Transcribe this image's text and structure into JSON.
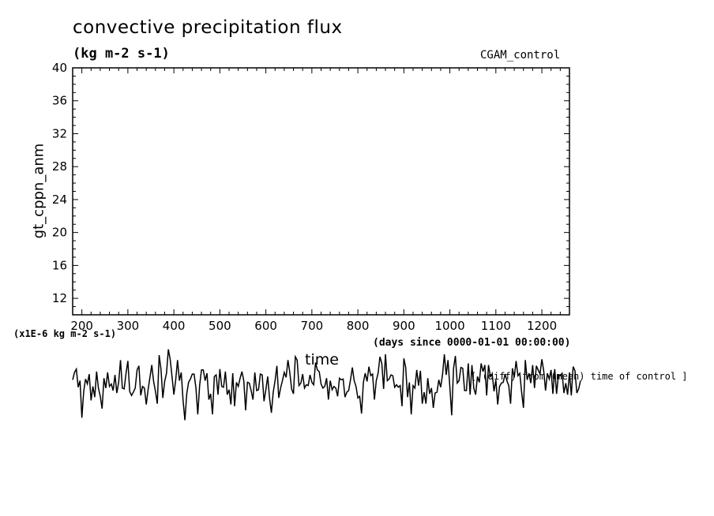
{
  "chart_data": {
    "type": "line",
    "title": "convective precipitation flux",
    "units": "(kg m-2 s-1)",
    "run_label": "CGAM_control",
    "ylabel": "gt_cppn_anm",
    "xlabel": "time",
    "x_units": "(days since 0000-01-01 00:00:00)",
    "y_scale_note": "(x1E-6 kg m-2 s-1)",
    "annotation": "[ (diff) from (mean) time of control ]",
    "xlim": [
      180,
      1260
    ],
    "ylim": [
      10,
      40
    ],
    "x_ticks": [
      200,
      300,
      400,
      500,
      600,
      700,
      800,
      900,
      1000,
      1100,
      1200
    ],
    "y_ticks": [
      12,
      16,
      20,
      24,
      28,
      32,
      36,
      40
    ],
    "series": [
      {
        "x_start": 180,
        "x_step": 4,
        "values": [
          2.1,
          3.0,
          3.4,
          1.2,
          2.0,
          -2.5,
          0.7,
          2.2,
          1.6,
          2.8,
          -0.4,
          1.3,
          0.0,
          3.1,
          1.1,
          0.1,
          -1.4,
          2.3,
          1.1,
          3.0,
          1.3,
          1.6,
          0.8,
          2.7,
          0.5,
          1.8,
          4.5,
          1.1,
          1.0,
          2.9,
          4.4,
          0.7,
          0.2,
          0.6,
          1.1,
          3.3,
          3.8,
          0.2,
          1.3,
          1.1,
          -0.9,
          0.9,
          2.4,
          3.9,
          1.9,
          0.7,
          -0.8,
          5.1,
          3.4,
          -0.1,
          1.9,
          2.9,
          5.8,
          4.6,
          2.5,
          0.3,
          2.1,
          4.5,
          2.0,
          3.0,
          -0.4,
          -2.8,
          0.4,
          1.8,
          2.2,
          2.8,
          2.8,
          1.1,
          -2.1,
          1.4,
          3.3,
          3.3,
          2.0,
          2.9,
          -0.3,
          0.4,
          -2.1,
          2.5,
          2.7,
          0.3,
          3.4,
          1.3,
          1.2,
          3.1,
          0.3,
          0.9,
          -0.9,
          2.9,
          -1.1,
          1.8,
          1.3,
          2.3,
          3.1,
          2.0,
          -1.6,
          1.8,
          1.7,
          0.8,
          -0.3,
          3.0,
          0.8,
          0.9,
          2.8,
          2.7,
          -0.5,
          0.9,
          2.5,
          -0.1,
          -1.9,
          0.6,
          2.0,
          3.8,
          -0.1,
          1.1,
          2.0,
          3.0,
          2.4,
          4.5,
          3.0,
          1.0,
          0.4,
          4.9,
          4.5,
          1.4,
          1.7,
          2.8,
          1.1,
          1.5,
          1.4,
          2.7,
          1.8,
          1.5,
          4.2,
          3.3,
          3.1,
          1.6,
          1.1,
          1.3,
          2.3,
          -0.3,
          2.0,
          0.9,
          1.3,
          1.1,
          0.1,
          2.3,
          2.1,
          2.2,
          0.0,
          0.6,
          0.8,
          2.1,
          3.6,
          2.0,
          1.3,
          -0.1,
          0.1,
          -2.0,
          1.8,
          2.9,
          1.9,
          3.7,
          2.6,
          2.8,
          -0.3,
          2.0,
          2.9,
          4.9,
          4.1,
          1.0,
          5.2,
          2.0,
          2.2,
          2.7,
          2.6,
          1.2,
          1.5,
          1.2,
          1.4,
          -1.1,
          4.7,
          3.6,
          0.0,
          1.8,
          -2.1,
          1.4,
          1.1,
          3.3,
          1.4,
          3.2,
          -0.8,
          0.6,
          -0.8,
          2.3,
          0.4,
          1.1,
          -1.3,
          0.5,
          0.6,
          2.1,
          1.2,
          2.7,
          5.2,
          2.7,
          4.5,
          1.2,
          -2.2,
          3.5,
          5.0,
          1.7,
          2.0,
          3.6,
          3.5,
          0.8,
          0.8,
          4.1,
          0.3,
          3.9,
          1.1,
          0.3,
          2.5,
          1.8,
          4.1,
          3.1,
          3.9,
          0.2,
          3.9,
          2.5,
          2.8,
          0.7,
          2.1,
          -0.9,
          1.3,
          1.7,
          1.8,
          2.8,
          2.0,
          1.4,
          -0.8,
          3.5,
          2.4,
          4.4,
          2.6,
          2.9,
          0.6,
          -1.3,
          4.5,
          2.1,
          2.9,
          1.7,
          3.9,
          1.1,
          3.8,
          3.3,
          2.8,
          4.6,
          3.2,
          0.8,
          2.9,
          2.2,
          3.3,
          0.4,
          3.4,
          0.4,
          2.7,
          2.6,
          2.9,
          0.5,
          1.7,
          0.3,
          3.0,
          0.2,
          3.7,
          3.2,
          0.5,
          1.0,
          2.0
        ]
      }
    ]
  }
}
